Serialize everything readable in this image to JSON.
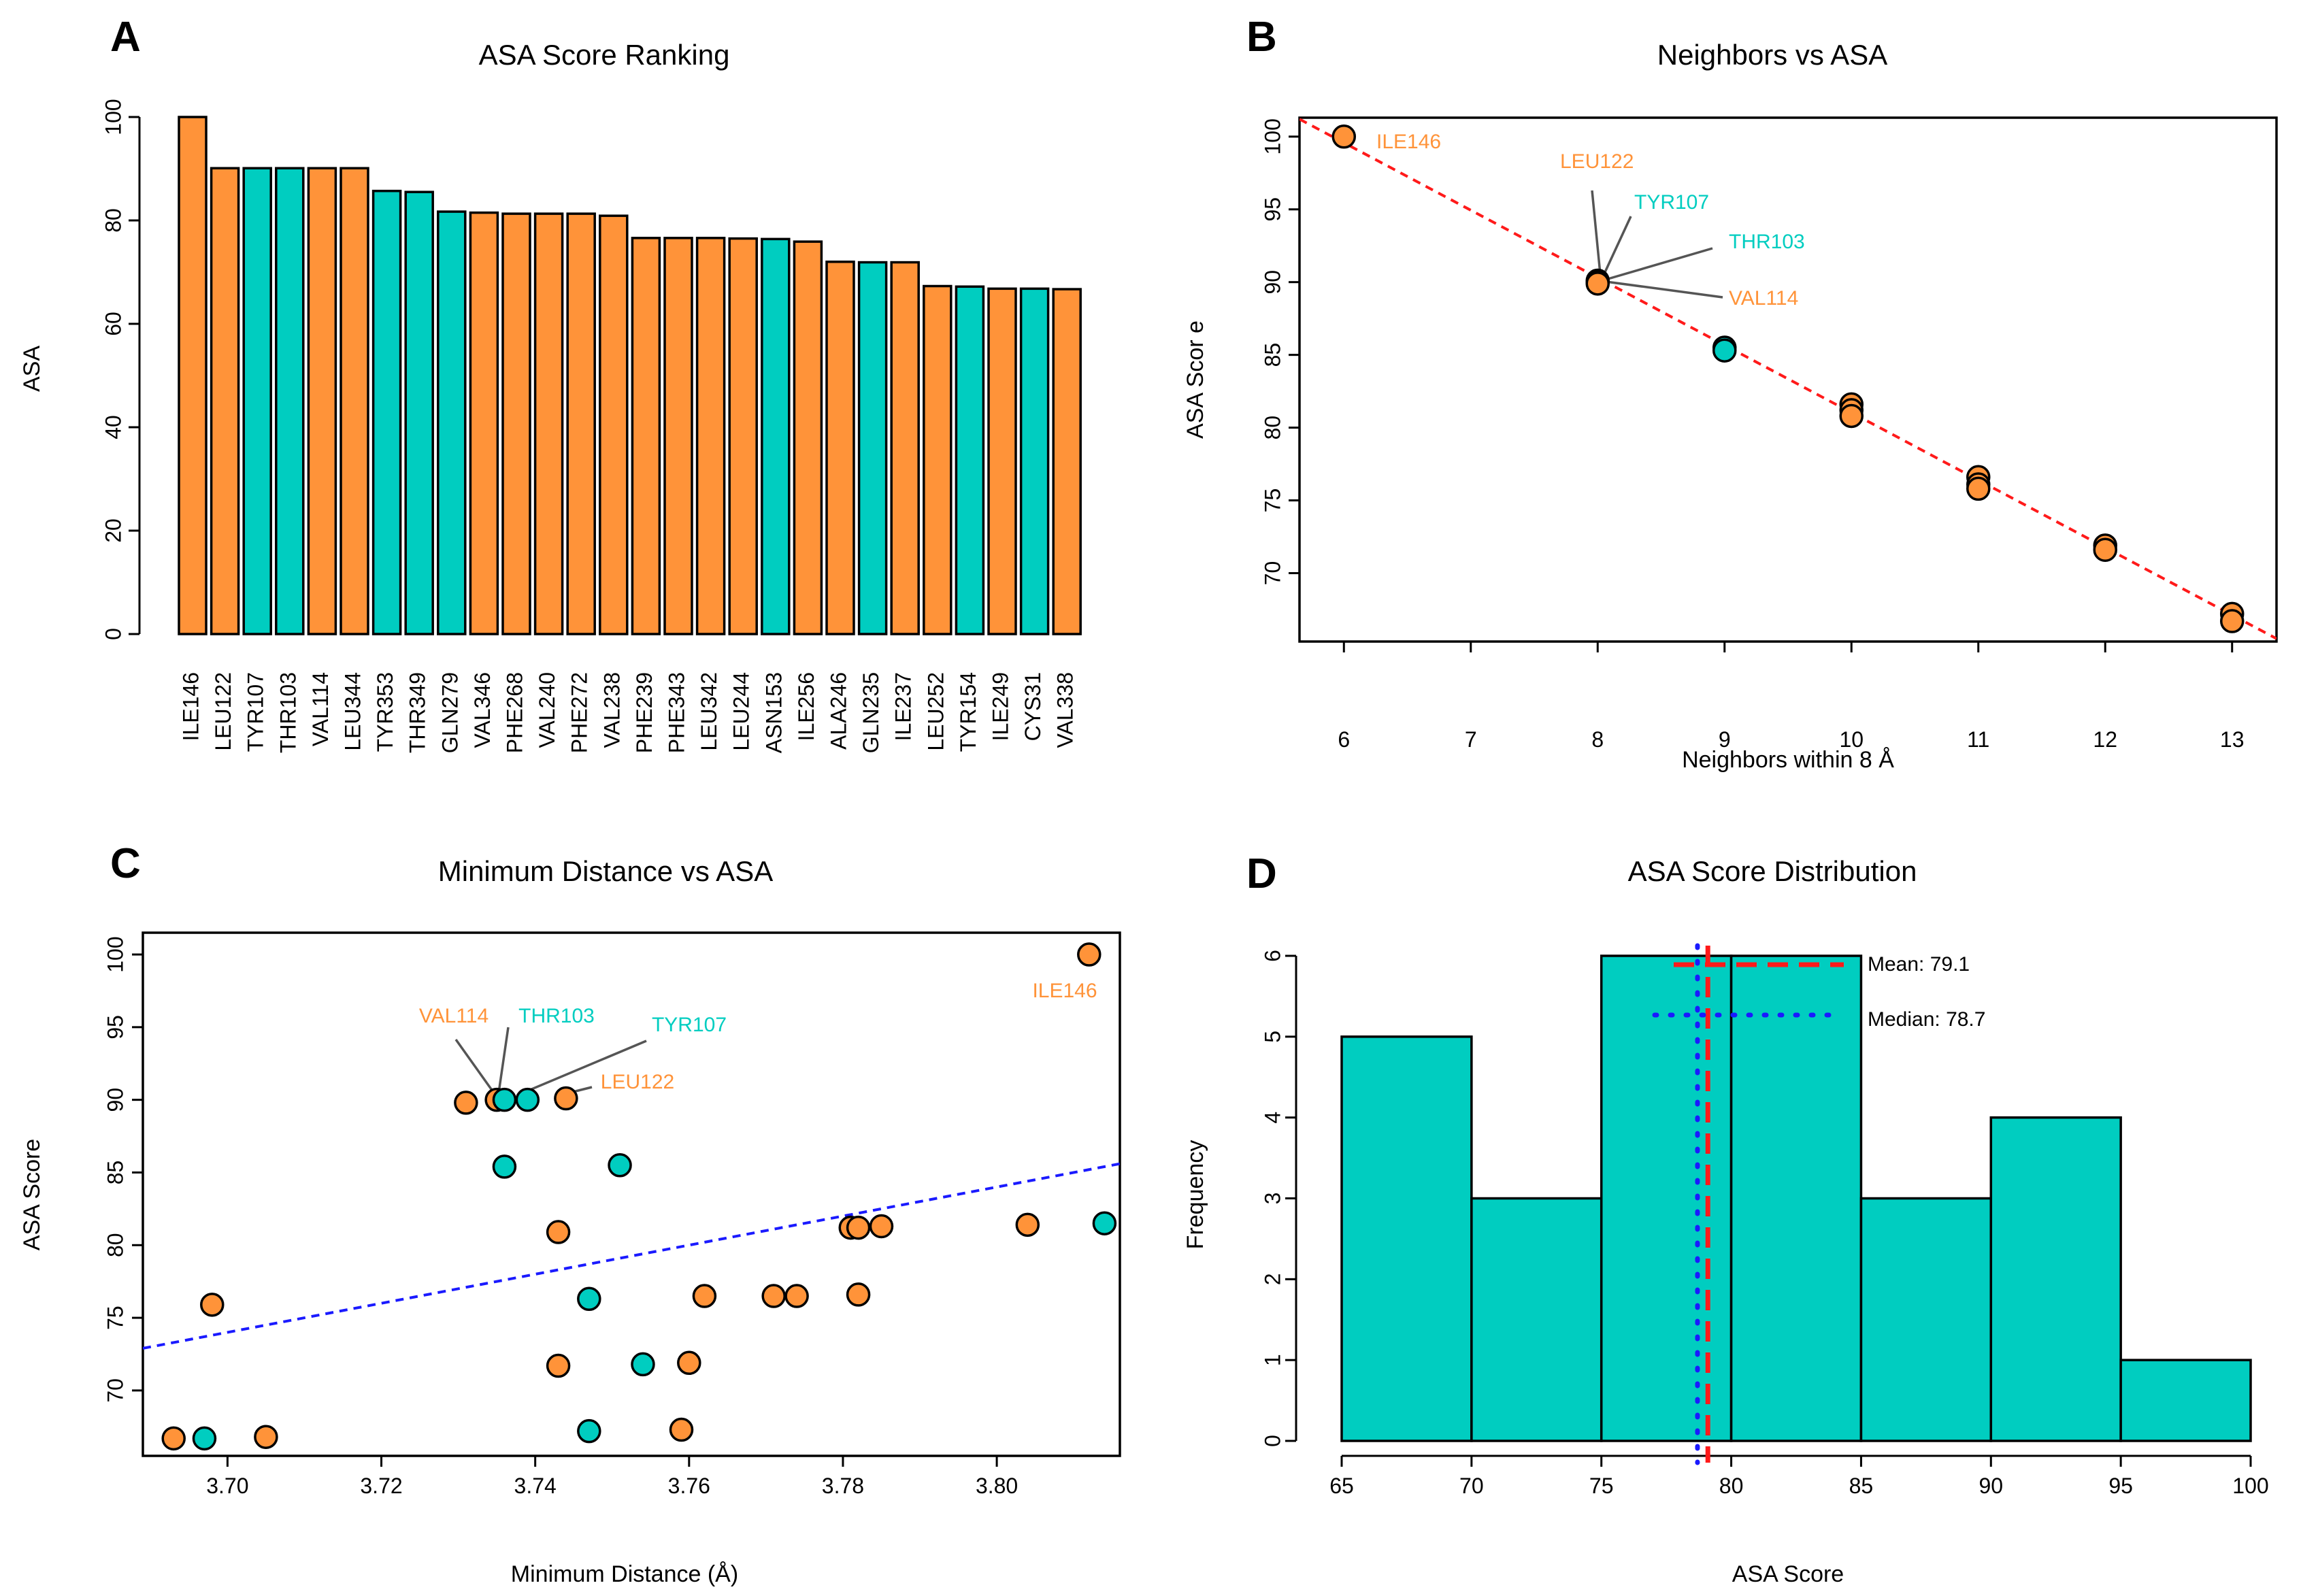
{
  "colors": {
    "orange": "#ff9339",
    "teal": "#00cdc0",
    "red": "#ff1a1a",
    "blue": "#1a1aff",
    "leader": "#555555"
  },
  "panels": {
    "A": {
      "letter": "A",
      "chart_data": {
        "type": "bar",
        "title": "ASA Score Ranking",
        "xlabel": "",
        "ylabel": "ASA",
        "ylim": [
          0,
          100
        ],
        "yticks": [
          "0",
          "20",
          "40",
          "60",
          "80",
          "100"
        ],
        "categories": [
          "ILE146",
          "LEU122",
          "TYR107",
          "THR103",
          "VAL114",
          "LEU344",
          "TYR353",
          "THR349",
          "GLN279",
          "VAL346",
          "PHE268",
          "VAL240",
          "PHE272",
          "VAL238",
          "PHE239",
          "PHE343",
          "LEU342",
          "LEU244",
          "ASN153",
          "ILE256",
          "ALA246",
          "GLN235",
          "ILE237",
          "LEU252",
          "TYR154",
          "ILE249",
          "CYS31",
          "VAL338"
        ],
        "values": [
          100,
          90.1,
          90.1,
          90.1,
          90.1,
          90.1,
          85.7,
          85.5,
          81.7,
          81.5,
          81.3,
          81.3,
          81.3,
          80.9,
          76.6,
          76.6,
          76.6,
          76.5,
          76.4,
          75.9,
          72,
          71.9,
          71.9,
          67.3,
          67.2,
          66.8,
          66.8,
          66.7
        ],
        "groups": [
          "orange",
          "orange",
          "teal",
          "teal",
          "orange",
          "orange",
          "teal",
          "teal",
          "teal",
          "orange",
          "orange",
          "orange",
          "orange",
          "orange",
          "orange",
          "orange",
          "orange",
          "orange",
          "teal",
          "orange",
          "orange",
          "teal",
          "orange",
          "orange",
          "teal",
          "orange",
          "teal",
          "orange"
        ]
      }
    },
    "B": {
      "letter": "B",
      "chart_data": {
        "type": "scatter",
        "title": "Neighbors vs ASA",
        "xlabel": "Neighbors within 8 Å",
        "ylabel": "ASA Scor e",
        "xlim": [
          5.65,
          13.35
        ],
        "ylim": [
          65.3,
          101.3
        ],
        "xticks": [
          "6",
          "7",
          "8",
          "9",
          "10",
          "11",
          "12",
          "13"
        ],
        "yticks": [
          "70",
          "75",
          "80",
          "85",
          "90",
          "95",
          "100"
        ],
        "points": [
          {
            "x": 6,
            "y": 100,
            "group": "orange"
          },
          {
            "x": 8,
            "y": 90.1,
            "group": "orange"
          },
          {
            "x": 8,
            "y": 90.0,
            "group": "teal"
          },
          {
            "x": 8,
            "y": 89.9,
            "group": "orange"
          },
          {
            "x": 9,
            "y": 85.5,
            "group": "teal"
          },
          {
            "x": 9,
            "y": 85.3,
            "group": "teal"
          },
          {
            "x": 10,
            "y": 81.6,
            "group": "orange"
          },
          {
            "x": 10,
            "y": 81.2,
            "group": "orange"
          },
          {
            "x": 10,
            "y": 80.8,
            "group": "orange"
          },
          {
            "x": 11,
            "y": 76.6,
            "group": "orange"
          },
          {
            "x": 11,
            "y": 76.1,
            "group": "orange"
          },
          {
            "x": 11,
            "y": 75.8,
            "group": "orange"
          },
          {
            "x": 12,
            "y": 71.9,
            "group": "orange"
          },
          {
            "x": 12,
            "y": 71.6,
            "group": "orange"
          },
          {
            "x": 13,
            "y": 67.2,
            "group": "orange"
          },
          {
            "x": 13,
            "y": 66.7,
            "group": "orange"
          }
        ],
        "trend": {
          "x1": 5.65,
          "y1": 101.2,
          "x2": 13.35,
          "y2": 65.5
        },
        "annotations": [
          {
            "label": "ILE146",
            "group": "orange"
          },
          {
            "label": "LEU122",
            "group": "orange"
          },
          {
            "label": "TYR107",
            "group": "teal"
          },
          {
            "label": "THR103",
            "group": "teal"
          },
          {
            "label": "VAL114",
            "group": "orange"
          }
        ]
      }
    },
    "C": {
      "letter": "C",
      "chart_data": {
        "type": "scatter",
        "title": "Minimum Distance vs ASA",
        "xlabel": "Minimum Distance (Å)",
        "ylabel": "ASA Score",
        "xlim": [
          3.689,
          3.816
        ],
        "ylim": [
          65.5,
          101.5
        ],
        "xticks": [
          "3.70",
          "3.72",
          "3.74",
          "3.76",
          "3.78",
          "3.80"
        ],
        "yticks": [
          "70",
          "75",
          "80",
          "85",
          "90",
          "95",
          "100"
        ],
        "points": [
          {
            "x": 3.812,
            "y": 100,
            "group": "orange"
          },
          {
            "x": 3.731,
            "y": 89.8,
            "group": "orange"
          },
          {
            "x": 3.735,
            "y": 90.0,
            "group": "orange"
          },
          {
            "x": 3.736,
            "y": 90.0,
            "group": "teal"
          },
          {
            "x": 3.739,
            "y": 90.0,
            "group": "teal"
          },
          {
            "x": 3.744,
            "y": 90.1,
            "group": "orange"
          },
          {
            "x": 3.736,
            "y": 85.4,
            "group": "teal"
          },
          {
            "x": 3.751,
            "y": 85.5,
            "group": "teal"
          },
          {
            "x": 3.743,
            "y": 80.9,
            "group": "orange"
          },
          {
            "x": 3.781,
            "y": 81.2,
            "group": "orange"
          },
          {
            "x": 3.782,
            "y": 81.2,
            "group": "orange"
          },
          {
            "x": 3.785,
            "y": 81.3,
            "group": "orange"
          },
          {
            "x": 3.804,
            "y": 81.4,
            "group": "orange"
          },
          {
            "x": 3.814,
            "y": 81.5,
            "group": "teal"
          },
          {
            "x": 3.747,
            "y": 76.3,
            "group": "teal"
          },
          {
            "x": 3.762,
            "y": 76.5,
            "group": "orange"
          },
          {
            "x": 3.771,
            "y": 76.5,
            "group": "orange"
          },
          {
            "x": 3.774,
            "y": 76.5,
            "group": "orange"
          },
          {
            "x": 3.782,
            "y": 76.6,
            "group": "orange"
          },
          {
            "x": 3.698,
            "y": 75.9,
            "group": "orange"
          },
          {
            "x": 3.743,
            "y": 71.7,
            "group": "orange"
          },
          {
            "x": 3.754,
            "y": 71.8,
            "group": "teal"
          },
          {
            "x": 3.76,
            "y": 71.9,
            "group": "orange"
          },
          {
            "x": 3.747,
            "y": 67.2,
            "group": "teal"
          },
          {
            "x": 3.759,
            "y": 67.3,
            "group": "orange"
          },
          {
            "x": 3.693,
            "y": 66.7,
            "group": "orange"
          },
          {
            "x": 3.697,
            "y": 66.7,
            "group": "teal"
          },
          {
            "x": 3.705,
            "y": 66.8,
            "group": "orange"
          }
        ],
        "trend": {
          "x1": 3.689,
          "y1": 72.9,
          "x2": 3.816,
          "y2": 85.6
        },
        "annotations": [
          {
            "label": "ILE146",
            "group": "orange"
          },
          {
            "label": "VAL114",
            "group": "orange"
          },
          {
            "label": "THR103",
            "group": "teal"
          },
          {
            "label": "TYR107",
            "group": "teal"
          },
          {
            "label": "LEU122",
            "group": "orange"
          }
        ]
      }
    },
    "D": {
      "letter": "D",
      "chart_data": {
        "type": "histogram",
        "title": "ASA Score Distribution",
        "xlabel": "ASA Score",
        "ylabel": "Frequency",
        "xlim": [
          65,
          100
        ],
        "ylim": [
          0,
          6
        ],
        "xticks": [
          "65",
          "70",
          "75",
          "80",
          "85",
          "90",
          "95",
          "100"
        ],
        "yticks": [
          "0",
          "1",
          "2",
          "3",
          "4",
          "5",
          "6"
        ],
        "bins": [
          {
            "from": 65,
            "to": 70,
            "count": 5
          },
          {
            "from": 70,
            "to": 75,
            "count": 3
          },
          {
            "from": 75,
            "to": 80,
            "count": 6
          },
          {
            "from": 80,
            "to": 85,
            "count": 6
          },
          {
            "from": 85,
            "to": 90,
            "count": 3
          },
          {
            "from": 90,
            "to": 95,
            "count": 4
          },
          {
            "from": 95,
            "to": 100,
            "count": 1
          }
        ],
        "mean": 79.1,
        "median": 78.7,
        "mean_label": "Mean: 79.1",
        "median_label": "Median: 78.7"
      }
    }
  }
}
